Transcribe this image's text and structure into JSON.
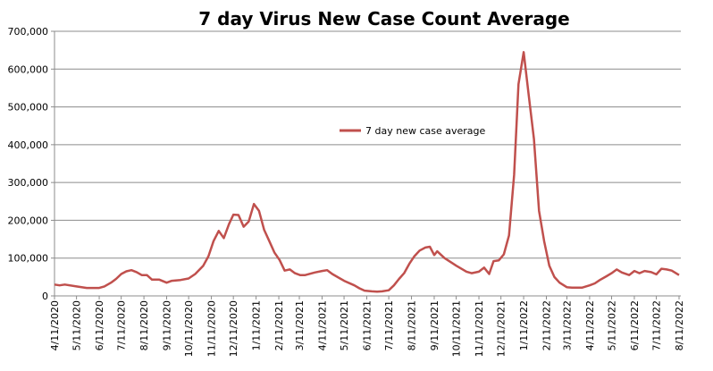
{
  "chart_data": {
    "type": "line",
    "title": "7 day Virus New Case Count Average",
    "xlabel": "",
    "ylabel": "",
    "ylim": [
      0,
      700000
    ],
    "yticks": [
      "0",
      "100,000",
      "200,000",
      "300,000",
      "400,000",
      "500,000",
      "600,000",
      "700,000"
    ],
    "xticks": [
      "4/11/2020",
      "5/11/2020",
      "6/11/2020",
      "7/11/2020",
      "8/11/2020",
      "9/11/2020",
      "10/11/2020",
      "11/11/2020",
      "12/11/2020",
      "1/11/2021",
      "2/11/2021",
      "3/11/2021",
      "4/11/2021",
      "5/11/2021",
      "6/11/2021",
      "7/11/2021",
      "8/11/2021",
      "9/11/2021",
      "10/11/2021",
      "11/11/2021",
      "12/11/2021",
      "1/11/2022",
      "2/11/2022",
      "3/11/2022",
      "4/11/2022",
      "5/11/2022",
      "6/11/2022",
      "7/11/2022",
      "8/11/2022"
    ],
    "grid": "horizontal",
    "legend_placement": "center",
    "series": [
      {
        "name": "7 day new case average",
        "color": "#c0504d",
        "x": [
          "4/11/2020",
          "4/18/2020",
          "4/25/2020",
          "5/11/2020",
          "5/25/2020",
          "6/11/2020",
          "6/18/2020",
          "6/27/2020",
          "7/4/2020",
          "7/11/2020",
          "7/18/2020",
          "7/25/2020",
          "8/1/2020",
          "8/8/2020",
          "8/15/2020",
          "8/22/2020",
          "9/1/2020",
          "9/11/2020",
          "9/18/2020",
          "9/30/2020",
          "10/11/2020",
          "10/20/2020",
          "10/31/2020",
          "11/7/2020",
          "11/14/2020",
          "11/21/2020",
          "11/28/2020",
          "12/5/2020",
          "12/11/2020",
          "12/18/2020",
          "12/25/2020",
          "1/1/2021",
          "1/8/2021",
          "1/15/2021",
          "1/22/2021",
          "1/29/2021",
          "2/5/2021",
          "2/12/2021",
          "2/19/2021",
          "2/26/2021",
          "3/5/2021",
          "3/12/2021",
          "3/19/2021",
          "4/1/2021",
          "4/11/2021",
          "4/18/2021",
          "4/25/2021",
          "5/11/2021",
          "5/25/2021",
          "6/1/2021",
          "6/8/2021",
          "6/18/2021",
          "6/25/2021",
          "7/2/2021",
          "7/11/2021",
          "7/18/2021",
          "7/25/2021",
          "8/1/2021",
          "8/8/2021",
          "8/15/2021",
          "8/22/2021",
          "8/30/2021",
          "9/5/2021",
          "9/11/2021",
          "9/15/2021",
          "9/25/2021",
          "10/11/2021",
          "10/25/2021",
          "11/1/2021",
          "11/11/2021",
          "11/18/2021",
          "11/25/2021",
          "12/1/2021",
          "12/8/2021",
          "12/15/2021",
          "12/22/2021",
          "12/29/2021",
          "1/4/2022",
          "1/11/2022",
          "1/18/2022",
          "1/25/2022",
          "2/1/2022",
          "2/8/2022",
          "2/15/2022",
          "2/22/2022",
          "3/1/2022",
          "3/11/2022",
          "3/18/2022",
          "3/25/2022",
          "4/1/2022",
          "4/11/2022",
          "4/18/2022",
          "4/25/2022",
          "5/4/2022",
          "5/11/2022",
          "5/18/2022",
          "5/25/2022",
          "6/4/2022",
          "6/11/2022",
          "6/18/2022",
          "6/25/2022",
          "7/4/2022",
          "7/11/2022",
          "7/18/2022",
          "7/25/2022",
          "8/1/2022",
          "8/11/2022"
        ],
        "values": [
          30000,
          28000,
          30000,
          25000,
          21000,
          21000,
          25000,
          35000,
          45000,
          58000,
          65000,
          68000,
          63000,
          55000,
          55000,
          43000,
          43000,
          35000,
          40000,
          42000,
          46000,
          58000,
          80000,
          105000,
          145000,
          172000,
          153000,
          190000,
          215000,
          214000,
          183000,
          197000,
          243000,
          225000,
          175000,
          145000,
          115000,
          95000,
          67000,
          70000,
          60000,
          55000,
          55000,
          62000,
          66000,
          68000,
          58000,
          40000,
          28000,
          20000,
          14000,
          12000,
          11000,
          12000,
          15000,
          28000,
          45000,
          60000,
          85000,
          105000,
          120000,
          128000,
          130000,
          108000,
          118000,
          100000,
          80000,
          64000,
          60000,
          64000,
          75000,
          58000,
          92000,
          94000,
          110000,
          160000,
          320000,
          560000,
          645000,
          530000,
          415000,
          225000,
          145000,
          80000,
          50000,
          35000,
          23000,
          22000,
          22000,
          22000,
          28000,
          33000,
          42000,
          52000,
          60000,
          70000,
          62000,
          55000,
          66000,
          60000,
          66000,
          63000,
          57000,
          72000,
          70000,
          67000,
          55000
        ]
      }
    ]
  }
}
